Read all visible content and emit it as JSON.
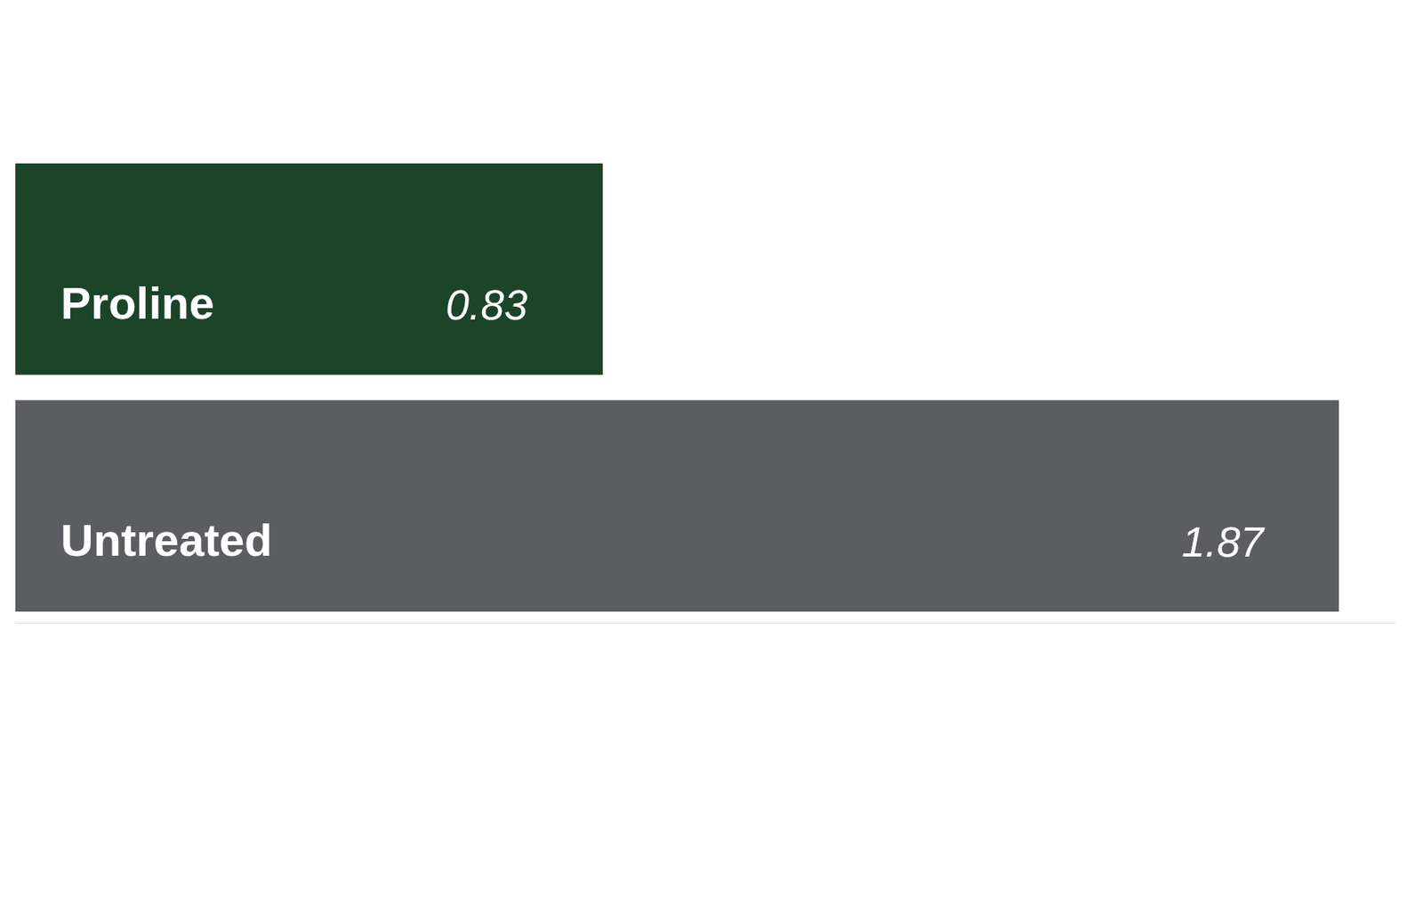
{
  "chart_data": {
    "type": "bar",
    "orientation": "horizontal",
    "categories": [
      "Proline",
      "Untreated"
    ],
    "values": [
      0.83,
      1.87
    ],
    "colors": [
      "#1c4428",
      "#5c5d61"
    ],
    "xlim": [
      0,
      1.95
    ],
    "xticks": [],
    "data_labels": true,
    "tick_labels": false
  }
}
